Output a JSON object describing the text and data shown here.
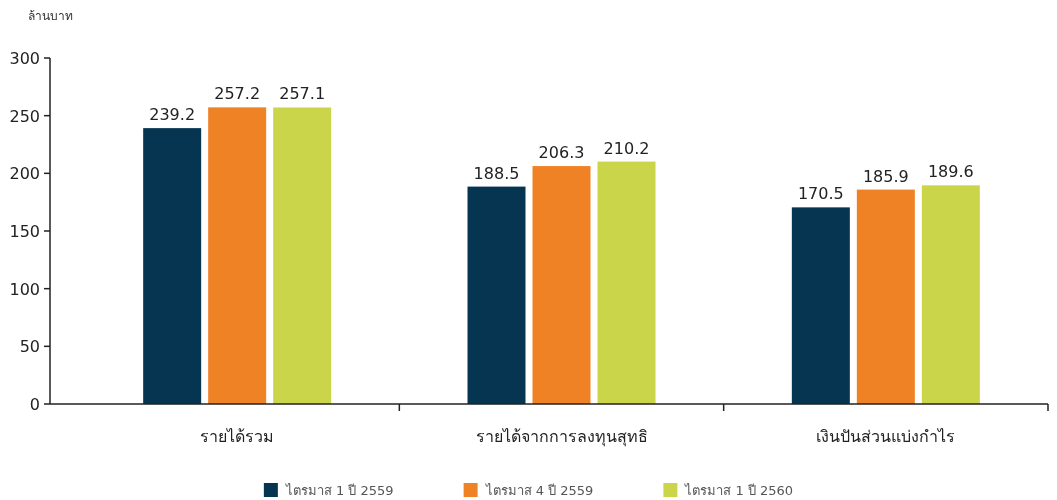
{
  "chart_data": {
    "type": "bar",
    "ylabel": "ล้านบาท",
    "categories": [
      "รายได้รวม",
      "รายได้จากการลงทุนสุทธิ",
      "เงินปันส่วนแบ่งกำไร"
    ],
    "series": [
      {
        "name": "ไตรมาส 1 ปี 2559",
        "color": "#063551",
        "values": [
          239.2,
          188.5,
          170.5
        ]
      },
      {
        "name": "ไตรมาส 4 ปี 2559",
        "color": "#ef8224",
        "values": [
          257.2,
          206.3,
          185.9
        ]
      },
      {
        "name": "ไตรมาส 1 ปี 2560",
        "color": "#cad54a",
        "values": [
          257.1,
          210.2,
          189.6
        ]
      }
    ],
    "ylim": [
      0,
      300
    ],
    "yticks": [
      0,
      50,
      100,
      150,
      200,
      250,
      300
    ],
    "data_labels": true,
    "grid": false,
    "legend": "bottom"
  }
}
